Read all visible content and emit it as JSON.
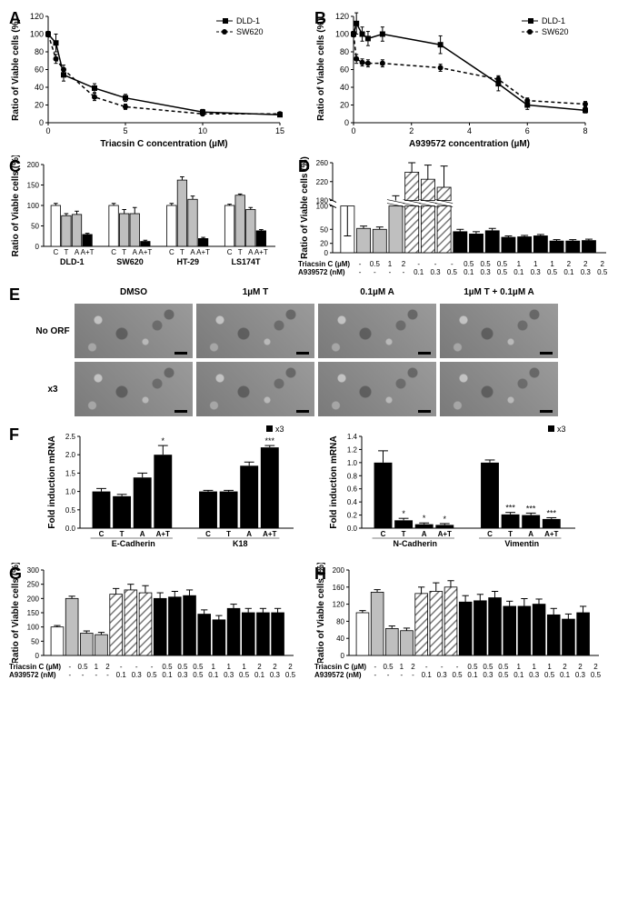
{
  "colors": {
    "axis": "#000000",
    "bg": "#ffffff",
    "black": "#000000",
    "white": "#ffffff",
    "grey": "#bfbfbf",
    "hatch": "#bfbfbf"
  },
  "panelA": {
    "label": "A",
    "ylabel": "Ratio of Viable cells (%)",
    "xlabel": "Triacsin C concentration (µM)",
    "legend": [
      {
        "marker": "square",
        "dash": "solid",
        "text": "DLD-1"
      },
      {
        "marker": "circle",
        "dash": "dash",
        "text": "SW620"
      }
    ],
    "xlim": [
      0,
      15
    ],
    "ylim": [
      0,
      120
    ],
    "xticks": [
      0,
      5,
      10,
      15
    ],
    "yticks": [
      0,
      20,
      40,
      60,
      80,
      100,
      120
    ],
    "series": [
      {
        "name": "DLD-1",
        "marker": "square",
        "dash": "solid",
        "points": [
          [
            0,
            100,
            3
          ],
          [
            0.5,
            90,
            10
          ],
          [
            1,
            54,
            7
          ],
          [
            3,
            39,
            5
          ],
          [
            5,
            28,
            4
          ],
          [
            10,
            12,
            3
          ],
          [
            15,
            9,
            2
          ]
        ]
      },
      {
        "name": "SW620",
        "marker": "circle",
        "dash": "dash",
        "points": [
          [
            0,
            100,
            3
          ],
          [
            0.5,
            72,
            5
          ],
          [
            1,
            60,
            5
          ],
          [
            3,
            29,
            4
          ],
          [
            5,
            18,
            3
          ],
          [
            10,
            10,
            2
          ],
          [
            15,
            10,
            2
          ]
        ]
      }
    ]
  },
  "panelB": {
    "label": "B",
    "ylabel": "Ratio of Viable cells (%)",
    "xlabel": "A939572 concentration (µM)",
    "legend": [
      {
        "marker": "square",
        "dash": "solid",
        "text": "DLD-1"
      },
      {
        "marker": "circle",
        "dash": "dash",
        "text": "SW620"
      }
    ],
    "xlim": [
      0,
      8
    ],
    "ylim": [
      0,
      120
    ],
    "xticks": [
      0,
      2,
      4,
      6,
      8
    ],
    "yticks": [
      0,
      20,
      40,
      60,
      80,
      100,
      120
    ],
    "series": [
      {
        "name": "DLD-1",
        "marker": "square",
        "dash": "solid",
        "points": [
          [
            0,
            100,
            3
          ],
          [
            0.1,
            112,
            12
          ],
          [
            0.3,
            100,
            8
          ],
          [
            0.5,
            95,
            8
          ],
          [
            1,
            100,
            8
          ],
          [
            3,
            88,
            10
          ],
          [
            5,
            44,
            8
          ],
          [
            6,
            20,
            5
          ],
          [
            8,
            14,
            3
          ]
        ]
      },
      {
        "name": "SW620",
        "marker": "circle",
        "dash": "dash",
        "points": [
          [
            0,
            100,
            3
          ],
          [
            0.1,
            72,
            5
          ],
          [
            0.3,
            68,
            4
          ],
          [
            0.5,
            67,
            4
          ],
          [
            1,
            67,
            4
          ],
          [
            3,
            62,
            4
          ],
          [
            5,
            49,
            4
          ],
          [
            6,
            25,
            3
          ],
          [
            8,
            21,
            3
          ]
        ]
      }
    ]
  },
  "panelC": {
    "label": "C",
    "ylabel": "Ratio of Viable cells (%)",
    "ylim": [
      0,
      200
    ],
    "yticks": [
      0,
      50,
      100,
      150,
      200
    ],
    "groups": [
      "DLD-1",
      "SW620",
      "HT-29",
      "LS174T"
    ],
    "conditions": [
      "C",
      "T",
      "A",
      "A+T"
    ],
    "styles": [
      "white",
      "grey",
      "grey",
      "black"
    ],
    "data": [
      [
        [
          100,
          5
        ],
        [
          75,
          5
        ],
        [
          78,
          8
        ],
        [
          29,
          3
        ]
      ],
      [
        [
          100,
          5
        ],
        [
          80,
          10
        ],
        [
          80,
          15
        ],
        [
          12,
          3
        ]
      ],
      [
        [
          100,
          5
        ],
        [
          162,
          8
        ],
        [
          115,
          8
        ],
        [
          19,
          3
        ]
      ],
      [
        [
          100,
          3
        ],
        [
          125,
          3
        ],
        [
          90,
          5
        ],
        [
          38,
          3
        ]
      ]
    ]
  },
  "panelD": {
    "label": "D",
    "ylabel": "Ratio of Viable cells (%)",
    "yticks_low": [
      0,
      20,
      50,
      100
    ],
    "yticks_high": [
      180,
      220,
      260
    ],
    "break": {
      "low_max": 100,
      "high_min": 180,
      "high_max": 260
    },
    "conditions": {
      "triacsinC": [
        "-",
        "0.5",
        "1",
        "2",
        "-",
        "-",
        "-",
        "0.5",
        "0.5",
        "0.5",
        "1",
        "1",
        "1",
        "2",
        "2",
        "2"
      ],
      "a939572": [
        "-",
        "-",
        "-",
        "-",
        "0.1",
        "0.3",
        "0.5",
        "0.1",
        "0.3",
        "0.5",
        "0.1",
        "0.3",
        "0.5",
        "0.1",
        "0.3",
        "0.5"
      ]
    },
    "cond_labels": {
      "row1": "Triacsin C (µM)",
      "row2": "A939572 (nM)"
    },
    "styles": [
      "white",
      "grey",
      "grey",
      "grey",
      "hatch",
      "hatch",
      "hatch",
      "black",
      "black",
      "black",
      "black",
      "black",
      "black",
      "black",
      "black",
      "black"
    ],
    "values": [
      [
        100,
        5
      ],
      [
        52,
        5
      ],
      [
        50,
        5
      ],
      [
        180,
        10
      ],
      [
        240,
        25
      ],
      [
        225,
        30
      ],
      [
        208,
        45
      ],
      [
        45,
        5
      ],
      [
        40,
        5
      ],
      [
        47,
        5
      ],
      [
        33,
        3
      ],
      [
        34,
        3
      ],
      [
        36,
        3
      ],
      [
        25,
        3
      ],
      [
        25,
        3
      ],
      [
        26,
        3
      ]
    ]
  },
  "panelE": {
    "label": "E",
    "cols": [
      "DMSO",
      "1µM T",
      "0.1µM A",
      "1µM T + 0.1µM A"
    ],
    "rows": [
      "No ORF",
      "x3"
    ]
  },
  "panelF": {
    "label": "F",
    "legend": "x3",
    "left": {
      "ylabel": "Fold induction mRNA",
      "ylim": [
        0,
        2.5
      ],
      "yticks": [
        0.0,
        0.5,
        1.0,
        1.5,
        2.0,
        2.5
      ],
      "groups": [
        "E-Cadherin",
        "K18"
      ],
      "conditions": [
        "C",
        "T",
        "A",
        "A+T"
      ],
      "data": [
        [
          [
            1.0,
            0.08,
            ""
          ],
          [
            0.87,
            0.05,
            ""
          ],
          [
            1.38,
            0.12,
            ""
          ],
          [
            2.0,
            0.25,
            "*"
          ]
        ],
        [
          [
            1.0,
            0.03,
            ""
          ],
          [
            1.0,
            0.03,
            ""
          ],
          [
            1.7,
            0.1,
            ""
          ],
          [
            2.2,
            0.05,
            "***"
          ]
        ]
      ]
    },
    "right": {
      "ylabel": "Fold induction mRNA",
      "ylim": [
        0,
        1.4
      ],
      "yticks": [
        0.0,
        0.2,
        0.4,
        0.6,
        0.8,
        1.0,
        1.2,
        1.4
      ],
      "groups": [
        "N-Cadherin",
        "Vimentin"
      ],
      "conditions": [
        "C",
        "T",
        "A",
        "A+T"
      ],
      "data": [
        [
          [
            1.0,
            0.18,
            ""
          ],
          [
            0.12,
            0.03,
            "*"
          ],
          [
            0.06,
            0.02,
            "*"
          ],
          [
            0.05,
            0.02,
            "*"
          ]
        ],
        [
          [
            1.0,
            0.04,
            ""
          ],
          [
            0.21,
            0.03,
            "***"
          ],
          [
            0.2,
            0.03,
            "***"
          ],
          [
            0.14,
            0.02,
            "***"
          ]
        ]
      ]
    }
  },
  "panelG": {
    "label": "G",
    "ylabel": "Ratio of Viable cells (%)",
    "ylim": [
      0,
      300
    ],
    "yticks": [
      0,
      50,
      100,
      150,
      200,
      250,
      300
    ],
    "cond_labels": {
      "row1": "Triacsin C (µM)",
      "row2": "A939572 (nM)"
    },
    "conditions": {
      "triacsinC": [
        "-",
        "0.5",
        "1",
        "2",
        "-",
        "-",
        "-",
        "0.5",
        "0.5",
        "0.5",
        "1",
        "1",
        "1",
        "2",
        "2",
        "2"
      ],
      "a939572": [
        "-",
        "-",
        "-",
        "-",
        "0.1",
        "0.3",
        "0.5",
        "0.1",
        "0.3",
        "0.5",
        "0.1",
        "0.3",
        "0.5",
        "0.1",
        "0.3",
        "0.5"
      ]
    },
    "styles": [
      "white",
      "grey",
      "grey",
      "grey",
      "hatch",
      "hatch",
      "hatch",
      "black",
      "black",
      "black",
      "black",
      "black",
      "black",
      "black",
      "black",
      "black"
    ],
    "values": [
      [
        100,
        5
      ],
      [
        200,
        8
      ],
      [
        78,
        8
      ],
      [
        73,
        8
      ],
      [
        215,
        20
      ],
      [
        230,
        20
      ],
      [
        220,
        25
      ],
      [
        200,
        20
      ],
      [
        205,
        20
      ],
      [
        210,
        20
      ],
      [
        145,
        15
      ],
      [
        125,
        15
      ],
      [
        165,
        15
      ],
      [
        150,
        15
      ],
      [
        150,
        15
      ],
      [
        150,
        15
      ]
    ]
  },
  "panelH": {
    "label": "H",
    "ylabel": "Ratio of Viable cells (%)",
    "ylim": [
      0,
      200
    ],
    "yticks": [
      0,
      40,
      80,
      120,
      160,
      200
    ],
    "cond_labels": {
      "row1": "Triacsin C (µM)",
      "row2": "A939572 (nM)"
    },
    "conditions": {
      "triacsinC": [
        "-",
        "0.5",
        "1",
        "2",
        "-",
        "-",
        "-",
        "0.5",
        "0.5",
        "0.5",
        "1",
        "1",
        "1",
        "2",
        "2",
        "2"
      ],
      "a939572": [
        "-",
        "-",
        "-",
        "-",
        "0.1",
        "0.3",
        "0.5",
        "0.1",
        "0.3",
        "0.5",
        "0.1",
        "0.3",
        "0.5",
        "0.1",
        "0.3",
        "0.5"
      ]
    },
    "styles": [
      "white",
      "grey",
      "grey",
      "grey",
      "hatch",
      "hatch",
      "hatch",
      "black",
      "black",
      "black",
      "black",
      "black",
      "black",
      "black",
      "black",
      "black"
    ],
    "values": [
      [
        100,
        5
      ],
      [
        148,
        6
      ],
      [
        63,
        6
      ],
      [
        58,
        6
      ],
      [
        145,
        15
      ],
      [
        150,
        20
      ],
      [
        160,
        15
      ],
      [
        125,
        15
      ],
      [
        128,
        15
      ],
      [
        135,
        15
      ],
      [
        115,
        12
      ],
      [
        115,
        18
      ],
      [
        120,
        12
      ],
      [
        95,
        15
      ],
      [
        85,
        12
      ],
      [
        100,
        15
      ]
    ]
  }
}
